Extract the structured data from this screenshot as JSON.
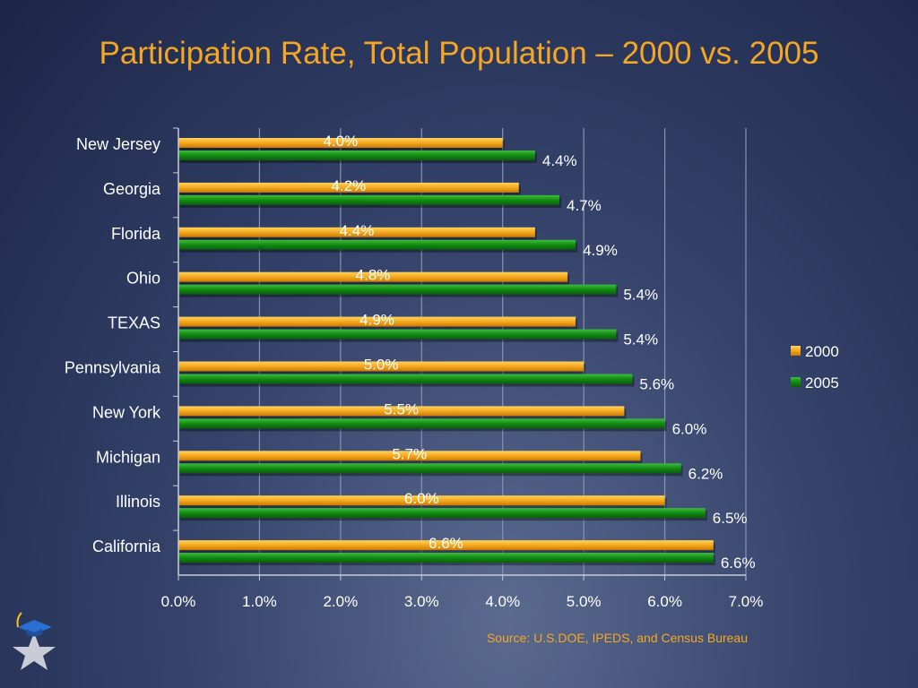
{
  "title": "Participation Rate, Total Population – 2000 vs. 2005",
  "source": "Source: U.S.DOE, IPEDS, and Census Bureau",
  "colors": {
    "series2000": "#f5a820",
    "series2005": "#138a13",
    "title": "#f5a623"
  },
  "chart_data": {
    "type": "bar",
    "orientation": "horizontal",
    "categories": [
      "New Jersey",
      "Georgia",
      "Florida",
      "Ohio",
      "TEXAS",
      "Pennsylvania",
      "New York",
      "Michigan",
      "Illinois",
      "California"
    ],
    "series": [
      {
        "name": "2000",
        "values": [
          4.0,
          4.2,
          4.4,
          4.8,
          4.9,
          5.0,
          5.5,
          5.7,
          6.0,
          6.6
        ],
        "labels": [
          "4.0%",
          "4.2%",
          "4.4%",
          "4.8%",
          "4.9%",
          "5.0%",
          "5.5%",
          "5.7%",
          "6.0%",
          "6.6%"
        ]
      },
      {
        "name": "2005",
        "values": [
          4.4,
          4.7,
          4.9,
          5.4,
          5.4,
          5.6,
          6.0,
          6.2,
          6.5,
          6.6
        ],
        "labels": [
          "4.4%",
          "4.7%",
          "4.9%",
          "5.4%",
          "5.4%",
          "5.6%",
          "6.0%",
          "6.2%",
          "6.5%",
          "6.6%"
        ]
      }
    ],
    "xlim": [
      0,
      7
    ],
    "xticks": [
      "0.0%",
      "1.0%",
      "2.0%",
      "3.0%",
      "4.0%",
      "5.0%",
      "6.0%",
      "7.0%"
    ],
    "xlabel": "",
    "ylabel": "",
    "grid": true,
    "legend": "right"
  }
}
